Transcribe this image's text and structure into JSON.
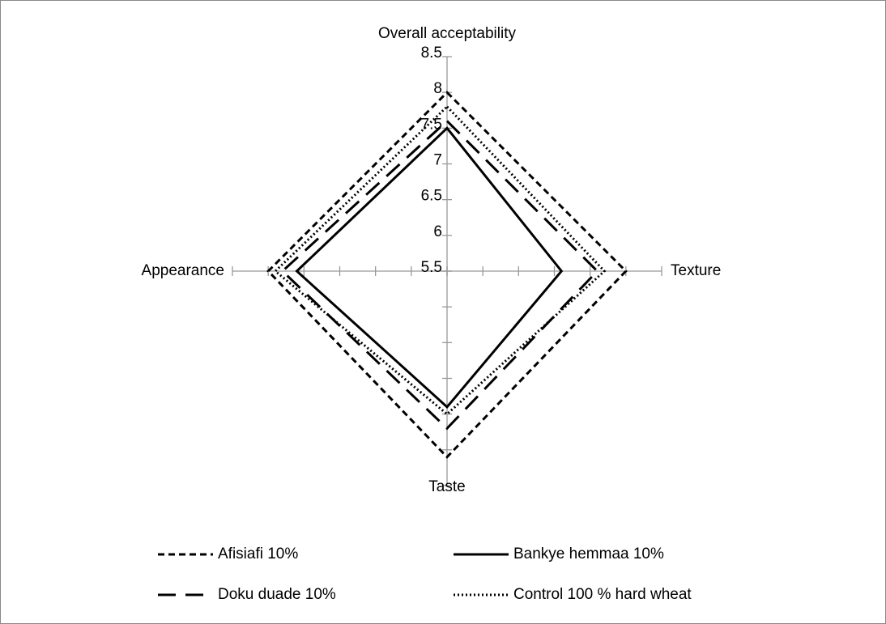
{
  "chart_data": {
    "type": "radar",
    "categories": [
      "Overall acceptability",
      "Texture",
      "Taste",
      "Appearance"
    ],
    "ylim": [
      5.5,
      8.5
    ],
    "yticks": [
      5.5,
      6,
      6.5,
      7,
      7.5,
      8,
      8.5
    ],
    "series": [
      {
        "name": "Afisiafi 10%",
        "color": "#000000",
        "dash": "short-dash",
        "values": [
          8.0,
          8.0,
          8.1,
          8.0
        ]
      },
      {
        "name": "Bankye hemmaa 10%",
        "color": "#000000",
        "dash": "solid",
        "values": [
          7.5,
          7.1,
          7.4,
          7.6
        ]
      },
      {
        "name": "Doku duade 10%",
        "color": "#000000",
        "dash": "long-dash",
        "values": [
          7.6,
          7.6,
          7.7,
          7.8
        ]
      },
      {
        "name": "Control 100 % hard wheat",
        "color": "#000000",
        "dash": "dot",
        "values": [
          7.8,
          7.7,
          7.5,
          7.9
        ]
      }
    ]
  }
}
